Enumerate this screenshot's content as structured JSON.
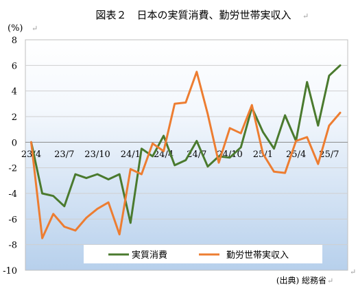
{
  "chart_data": {
    "type": "line",
    "title": "図表２　日本の実質消費、勤労世帯実収入",
    "ylabel": "(%)",
    "source": "(出典) 総務省",
    "ylim": [
      -10,
      8
    ],
    "yticks": [
      8,
      6,
      4,
      2,
      0,
      -2,
      -4,
      -6,
      -8,
      -10
    ],
    "x": [
      "23/4",
      "23/5",
      "23/6",
      "23/7",
      "23/8",
      "23/9",
      "23/10",
      "23/11",
      "23/12",
      "24/1",
      "24/2",
      "24/3",
      "24/4",
      "24/5",
      "24/6",
      "24/7",
      "24/8",
      "24/9",
      "24/10",
      "24/11",
      "24/12",
      "25/1",
      "25/2",
      "25/3",
      "25/4",
      "25/5",
      "25/6",
      "25/7",
      "25/8"
    ],
    "x_tick_labels": [
      "23/4",
      "23/7",
      "23/10",
      "24/1",
      "24/4",
      "24/7",
      "24/10",
      "25/1",
      "25/4",
      "25/7"
    ],
    "grid": true,
    "legend": "bottom-right inside plot",
    "series": [
      {
        "name": "実質消費",
        "color": "#4a7a2e",
        "values": [
          0.0,
          -4.0,
          -4.2,
          -5.0,
          -2.5,
          -2.8,
          -2.5,
          -2.9,
          -2.5,
          -6.3,
          -0.5,
          -1.1,
          0.5,
          -1.8,
          -1.4,
          0.1,
          -1.9,
          -1.1,
          -1.2,
          -0.4,
          2.7,
          0.8,
          -0.5,
          2.1,
          0.1,
          4.7,
          1.3,
          5.2,
          6.0
        ]
      },
      {
        "name": "勤労世帯実収入",
        "color": "#ed7d31",
        "values": [
          0.0,
          -7.5,
          -5.6,
          -6.6,
          -6.9,
          -5.9,
          -5.2,
          -4.7,
          -7.2,
          -2.1,
          -2.5,
          -0.1,
          -0.7,
          3.0,
          3.1,
          5.5,
          2.2,
          -1.6,
          1.1,
          0.7,
          2.9,
          -0.9,
          -2.3,
          -2.4,
          0.1,
          0.4,
          -1.7,
          1.3,
          2.3
        ]
      }
    ]
  }
}
